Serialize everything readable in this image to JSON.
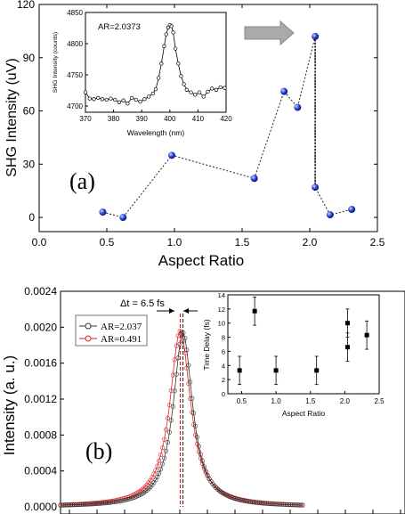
{
  "chart_data": [
    {
      "panel": "a",
      "type": "scatter",
      "panel_label": "(a)",
      "xlabel": "Aspect Ratio",
      "ylabel": "SHG Intensity (uV)",
      "xlim": [
        0.0,
        2.5
      ],
      "ylim": [
        -8,
        120
      ],
      "xticks": [
        "0.0",
        "0.5",
        "1.0",
        "1.5",
        "2.0",
        "2.5"
      ],
      "yticks": [
        "0",
        "30",
        "60",
        "90",
        "120"
      ],
      "points": [
        {
          "x": 0.47,
          "y": 3
        },
        {
          "x": 0.62,
          "y": 0
        },
        {
          "x": 0.98,
          "y": 35
        },
        {
          "x": 1.59,
          "y": 22
        },
        {
          "x": 1.81,
          "y": 71
        },
        {
          "x": 1.91,
          "y": 62
        },
        {
          "x": 2.04,
          "y": 102
        },
        {
          "x": 2.04,
          "y": 17
        },
        {
          "x": 2.15,
          "y": 1.5
        },
        {
          "x": 2.31,
          "y": 4.5
        }
      ],
      "marker_color": "#1f3fd0",
      "line_style": "dotted",
      "annotation": "arrow pointing right",
      "inset": {
        "type": "line",
        "annotation": "AR=2.0373",
        "xlabel": "Wavelength (nm)",
        "ylabel": "SHG Intensity (counts)",
        "xlim": [
          370,
          420
        ],
        "ylim": [
          4690,
          4850
        ],
        "xticks": [
          "370",
          "380",
          "390",
          "400",
          "410",
          "420"
        ],
        "yticks": [
          "4700",
          "4750",
          "4800",
          "4850"
        ],
        "x": [
          370,
          371.5,
          373,
          374.5,
          376,
          377.5,
          379,
          380.5,
          382,
          383.5,
          385,
          386.5,
          388,
          389.5,
          391,
          392.5,
          394,
          395,
          396,
          397,
          398,
          398.7,
          399.4,
          400,
          400.6,
          401.2,
          402,
          403,
          404,
          405,
          406,
          407.5,
          409,
          410.5,
          412,
          413.5,
          415,
          416.5,
          418,
          419.5
        ],
        "y": [
          4722,
          4712,
          4711,
          4713,
          4711,
          4710,
          4712,
          4710,
          4706,
          4709,
          4704,
          4713,
          4710,
          4707,
          4711,
          4715,
          4720,
          4727,
          4745,
          4768,
          4796,
          4815,
          4826,
          4830,
          4828,
          4818,
          4792,
          4768,
          4748,
          4735,
          4726,
          4722,
          4718,
          4722,
          4715,
          4723,
          4728,
          4726,
          4730,
          4729
        ]
      }
    },
    {
      "panel": "b",
      "type": "line",
      "panel_label": "(b)",
      "ylabel": "Intensity (a. u.)",
      "ylim": [
        0.0,
        0.0024
      ],
      "yticks": [
        "0.0000",
        "0.0004",
        "0.0008",
        "0.0012",
        "0.0016",
        "0.0020",
        "0.0024"
      ],
      "annotation": "Δt = 6.5 fs",
      "series": [
        {
          "name": "AR=2.037",
          "color": "#333333",
          "peak_position": 0.5055,
          "peak_value": 0.00194,
          "width": 0.048
        },
        {
          "name": "AR=0.491",
          "color": "#e02020",
          "peak_position": 0.4945,
          "peak_value": 0.00196,
          "width": 0.052
        }
      ],
      "inset": {
        "type": "scatter",
        "xlabel": "Aspect Ratio",
        "ylabel": "Time Delay (fs)",
        "xlim": [
          0.3,
          2.5
        ],
        "ylim": [
          0,
          14
        ],
        "xticks": [
          "0.5",
          "1.0",
          "1.5",
          "2.0",
          "2.5"
        ],
        "yticks": [
          "0",
          "2",
          "4",
          "6",
          "8",
          "10",
          "12",
          "14"
        ],
        "points": [
          {
            "x": 0.47,
            "y": 3.3,
            "err": 2.0
          },
          {
            "x": 0.69,
            "y": 11.7,
            "err": 2.0
          },
          {
            "x": 1.0,
            "y": 3.3,
            "err": 2.0
          },
          {
            "x": 1.59,
            "y": 3.3,
            "err": 2.0
          },
          {
            "x": 2.04,
            "y": 10.0,
            "err": 2.0
          },
          {
            "x": 2.04,
            "y": 6.6,
            "err": 2.0
          },
          {
            "x": 2.32,
            "y": 8.3,
            "err": 2.0
          }
        ]
      }
    }
  ]
}
